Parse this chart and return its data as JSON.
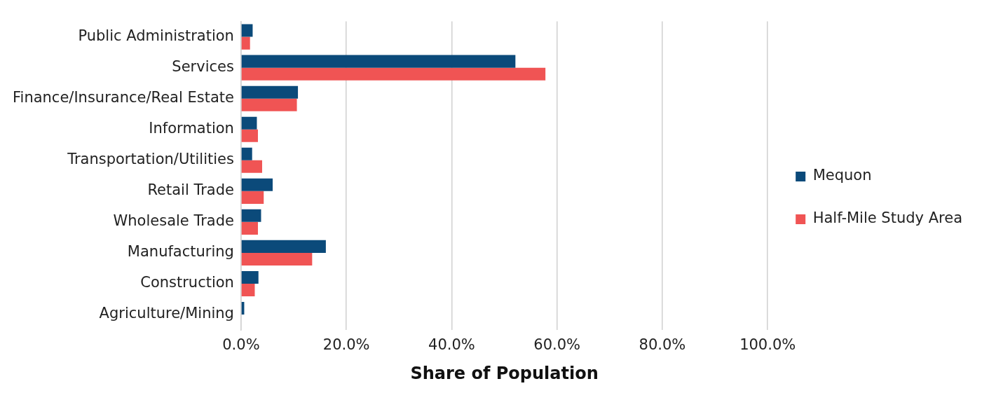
{
  "chart_data": {
    "type": "bar",
    "orientation": "horizontal",
    "xlabel": "Share of Population",
    "categories": [
      "Public Administration",
      "Services",
      "Finance/Insurance/Real Estate",
      "Information",
      "Transportation/Utilities",
      "Retail Trade",
      "Wholesale Trade",
      "Manufacturing",
      "Construction",
      "Agriculture/Mining"
    ],
    "series": [
      {
        "name": "Mequon",
        "color": "#0b4a7a",
        "values": [
          2.2,
          52.1,
          10.8,
          3.0,
          2.1,
          6.0,
          3.8,
          16.1,
          3.3,
          0.6
        ]
      },
      {
        "name": "Half-Mile Study Area",
        "color": "#f05454",
        "values": [
          1.7,
          57.8,
          10.6,
          3.2,
          4.0,
          4.3,
          3.2,
          13.5,
          2.6,
          0.0
        ]
      }
    ],
    "xlim": [
      0,
      100
    ],
    "xticks": [
      {
        "value": 0,
        "label": "0.0%"
      },
      {
        "value": 20,
        "label": "20.0%"
      },
      {
        "value": 40,
        "label": "40.0%"
      },
      {
        "value": 60,
        "label": "60.0%"
      },
      {
        "value": 80,
        "label": "80.0%"
      },
      {
        "value": 100,
        "label": "100.0%"
      }
    ],
    "grid": "x",
    "legend": "right"
  }
}
